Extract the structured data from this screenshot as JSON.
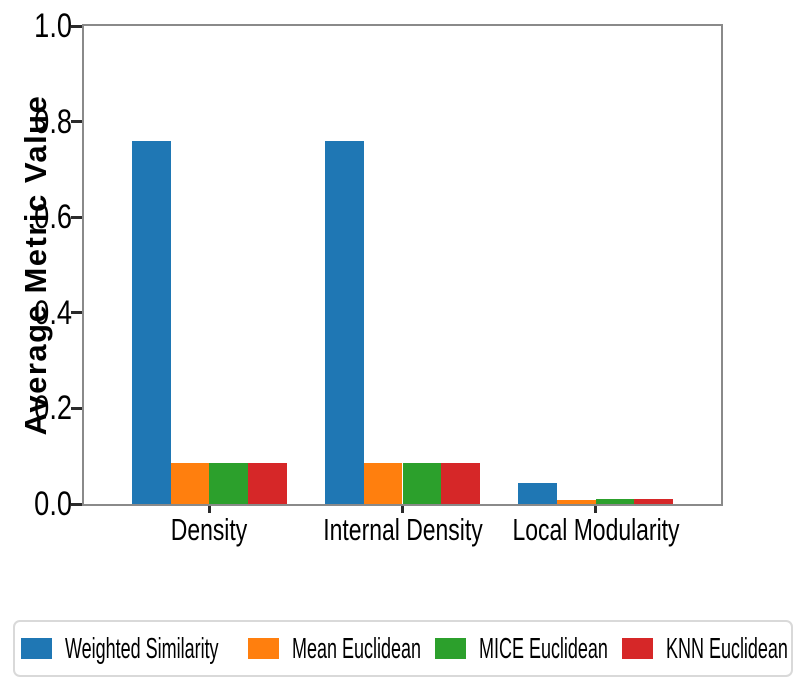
{
  "chart_data": {
    "type": "bar",
    "title": "",
    "xlabel": "",
    "ylabel": "Average Metric Value",
    "categories": [
      "Density",
      "Internal Density",
      "Local Modularity"
    ],
    "series": [
      {
        "name": "Weighted Similarity",
        "color": "#1f77b4",
        "values": [
          0.76,
          0.76,
          0.045
        ]
      },
      {
        "name": "Mean Euclidean",
        "color": "#ff7f0e",
        "values": [
          0.085,
          0.085,
          0.008
        ]
      },
      {
        "name": "MICE Euclidean",
        "color": "#2ca02c",
        "values": [
          0.085,
          0.085,
          0.011
        ]
      },
      {
        "name": "KNN Euclidean",
        "color": "#d62728",
        "values": [
          0.085,
          0.085,
          0.011
        ]
      }
    ],
    "ylim": [
      0,
      1.0
    ],
    "yticks": [
      "0.0",
      "0.2",
      "0.4",
      "0.6",
      "0.8",
      "1.0"
    ],
    "xlim": [
      -0.65,
      2.65
    ],
    "bar_width_units": 0.2,
    "grid": false,
    "legend_position": "bottom"
  }
}
